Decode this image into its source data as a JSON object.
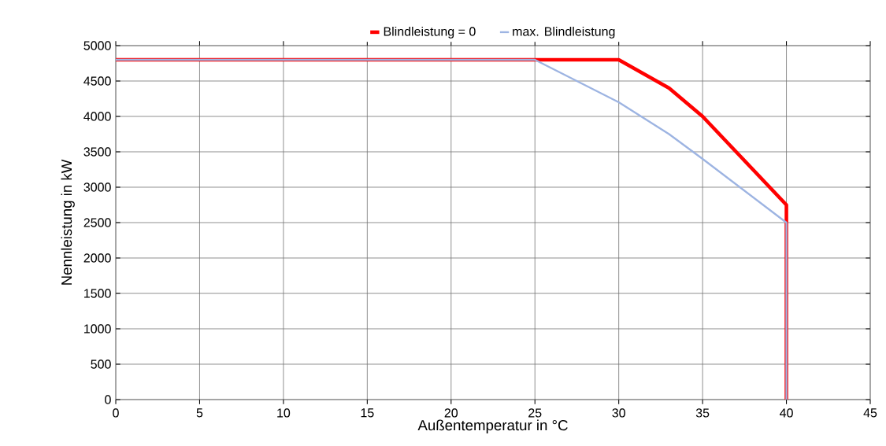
{
  "chart_data": {
    "type": "line",
    "xlabel": "Außentemperatur in °C",
    "ylabel": "Nennleistung in kW",
    "series": [
      {
        "name": "Blindleistung = 0",
        "color": "#ff0000",
        "x": [
          0,
          30,
          33,
          35,
          40,
          40
        ],
        "values": [
          4800,
          4800,
          4400,
          4000,
          2750,
          0
        ]
      },
      {
        "name": "max.  Blindleistung",
        "color": "#9db4e2",
        "x": [
          0,
          25,
          30,
          33,
          35,
          40,
          40
        ],
        "values": [
          4800,
          4800,
          4200,
          3750,
          3400,
          2500,
          0
        ]
      }
    ],
    "xlim": [
      0,
      45
    ],
    "xticks": [
      0,
      5,
      10,
      15,
      20,
      25,
      30,
      35,
      40,
      45
    ],
    "ylim": [
      0,
      5000
    ],
    "yticks": [
      0,
      500,
      1000,
      1500,
      2000,
      2500,
      3000,
      3500,
      4000,
      4500,
      5000
    ],
    "grid": true,
    "legend": "top",
    "marker": "none",
    "line_style": "solid"
  }
}
